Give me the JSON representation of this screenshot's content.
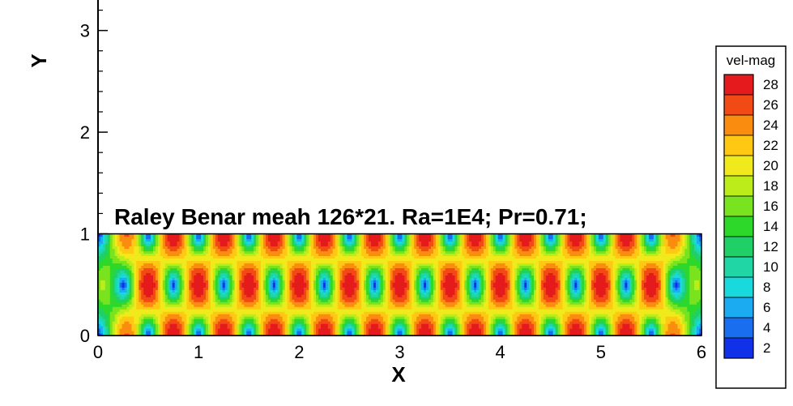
{
  "chart_data": {
    "type": "heatmap",
    "title": "Raley Benar meah 126*21. Ra=1E4; Pr=0.71;",
    "xlabel": "X",
    "ylabel": "Y",
    "xlim": [
      0,
      6
    ],
    "ylim": [
      0,
      3.3
    ],
    "xticks": [
      "0",
      "1",
      "2",
      "3",
      "4",
      "5",
      "6"
    ],
    "yticks": [
      "0",
      "1",
      "2",
      "3"
    ],
    "field": {
      "name": "vel-mag",
      "domain_x": [
        0,
        6
      ],
      "domain_y": [
        0,
        1
      ],
      "grid": "126*21",
      "convection_cells": 12,
      "peak_centers_x": [
        1.1,
        2.05,
        3.0,
        3.95,
        4.9
      ],
      "peak_center_y": 0.5,
      "vmin": 1,
      "vmax": 29
    },
    "legend": {
      "title": "vel-mag",
      "placement": "right",
      "levels": [
        "28",
        "26",
        "24",
        "22",
        "20",
        "18",
        "16",
        "14",
        "12",
        "10",
        "8",
        "6",
        "4",
        "2"
      ],
      "colors": [
        "#e41a1c",
        "#f24a14",
        "#fa8c10",
        "#ffc813",
        "#f0ea1c",
        "#bcec1a",
        "#78e31e",
        "#2ed82a",
        "#1ed066",
        "#20d6a4",
        "#18d9dc",
        "#1aabf0",
        "#196ef0",
        "#1031e8"
      ]
    }
  }
}
